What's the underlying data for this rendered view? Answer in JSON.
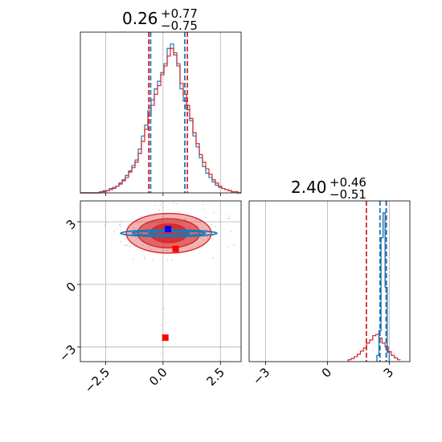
{
  "chart_data": [
    {
      "type": "histogram",
      "panel": "top-left",
      "title_value": "0.26",
      "title_plus": "+0.77",
      "title_minus": "−0.75",
      "xlim": [
        -3.6,
        3.4
      ],
      "grid": true,
      "colors": {
        "series_a": "#1f77b4",
        "series_b": "#d62728"
      },
      "series_a_quantiles": [
        -0.54,
        0.95
      ],
      "series_b_quantiles": [
        -0.62,
        1.06
      ],
      "bin_edges_start": -3.6,
      "bin_width": 0.14,
      "series_a_counts": [
        0,
        0,
        0,
        0,
        0,
        0,
        1,
        2,
        2,
        4,
        4,
        6,
        9,
        12,
        16,
        20,
        25,
        30,
        40,
        52,
        62,
        75,
        85,
        95,
        102,
        110,
        118,
        132,
        136,
        128,
        118,
        95,
        84,
        76,
        66,
        52,
        42,
        32,
        24,
        18,
        14,
        10,
        7,
        5,
        4,
        3,
        2,
        1,
        1,
        0
      ],
      "series_b_counts": [
        0,
        0,
        0,
        0,
        0,
        0,
        1,
        1,
        2,
        3,
        5,
        6,
        8,
        11,
        14,
        19,
        23,
        28,
        36,
        47,
        58,
        70,
        80,
        90,
        98,
        108,
        116,
        125,
        132,
        126,
        116,
        100,
        90,
        80,
        68,
        55,
        45,
        35,
        28,
        22,
        17,
        12,
        9,
        6,
        4,
        3,
        2,
        1,
        1,
        0
      ]
    },
    {
      "type": "contour",
      "panel": "bottom-left",
      "xlim": [
        -3.6,
        3.4
      ],
      "ylim": [
        -3.7,
        4.0
      ],
      "x_ticks": [
        -2.5,
        0.0,
        2.5
      ],
      "y_ticks": [
        -3,
        0,
        3
      ],
      "x_tick_labels": [
        "−2.5",
        "0.0",
        "2.5"
      ],
      "y_tick_labels": [
        "−3",
        "0",
        "3"
      ],
      "grid": true,
      "contour_center": [
        0.25,
        2.45
      ],
      "series_b_contours": [
        {
          "rx": 1.85,
          "ry": 0.95,
          "opacity": 0.35
        },
        {
          "rx": 1.35,
          "ry": 0.7,
          "opacity": 0.55
        },
        {
          "rx": 0.8,
          "ry": 0.45,
          "opacity": 0.85
        }
      ],
      "series_a_contours": [
        {
          "rx": 2.1,
          "ry": 0.16
        },
        {
          "rx": 1.6,
          "ry": 0.11
        },
        {
          "rx": 0.9,
          "ry": 0.06
        }
      ],
      "markers": [
        {
          "x": 0.22,
          "y": 2.65,
          "color": "#0000ff"
        },
        {
          "x": 0.55,
          "y": 1.7,
          "color": "#ff0000"
        },
        {
          "x": 0.1,
          "y": -2.55,
          "color": "#ff0000"
        }
      ]
    },
    {
      "type": "histogram",
      "panel": "bottom-right",
      "title_value": "2.40",
      "title_plus": "+0.46",
      "title_minus": "−0.51",
      "xlim": [
        -3.8,
        4.0
      ],
      "x_ticks": [
        -3,
        0,
        3
      ],
      "x_tick_labels": [
        "−3",
        "0",
        "3"
      ],
      "grid": true,
      "series_a_quantiles": [
        2.55,
        2.85
      ],
      "series_b_quantiles": [
        1.89,
        2.86
      ],
      "series_a_bins": [
        {
          "x0": 2.4,
          "x1": 2.5,
          "count": 10
        },
        {
          "x0": 2.5,
          "x1": 2.6,
          "count": 50
        },
        {
          "x0": 2.6,
          "x1": 2.7,
          "count": 200
        },
        {
          "x0": 2.7,
          "x1": 2.8,
          "count": 240
        },
        {
          "x0": 2.8,
          "x1": 2.9,
          "count": 120
        },
        {
          "x0": 2.9,
          "x1": 3.0,
          "count": 15
        }
      ],
      "series_b_counts": [
        3,
        5,
        8,
        12,
        17,
        22,
        30,
        35,
        42,
        44,
        38,
        30,
        24,
        16,
        10,
        6,
        3
      ],
      "series_b_start": 1.0,
      "series_b_width": 0.15
    }
  ]
}
